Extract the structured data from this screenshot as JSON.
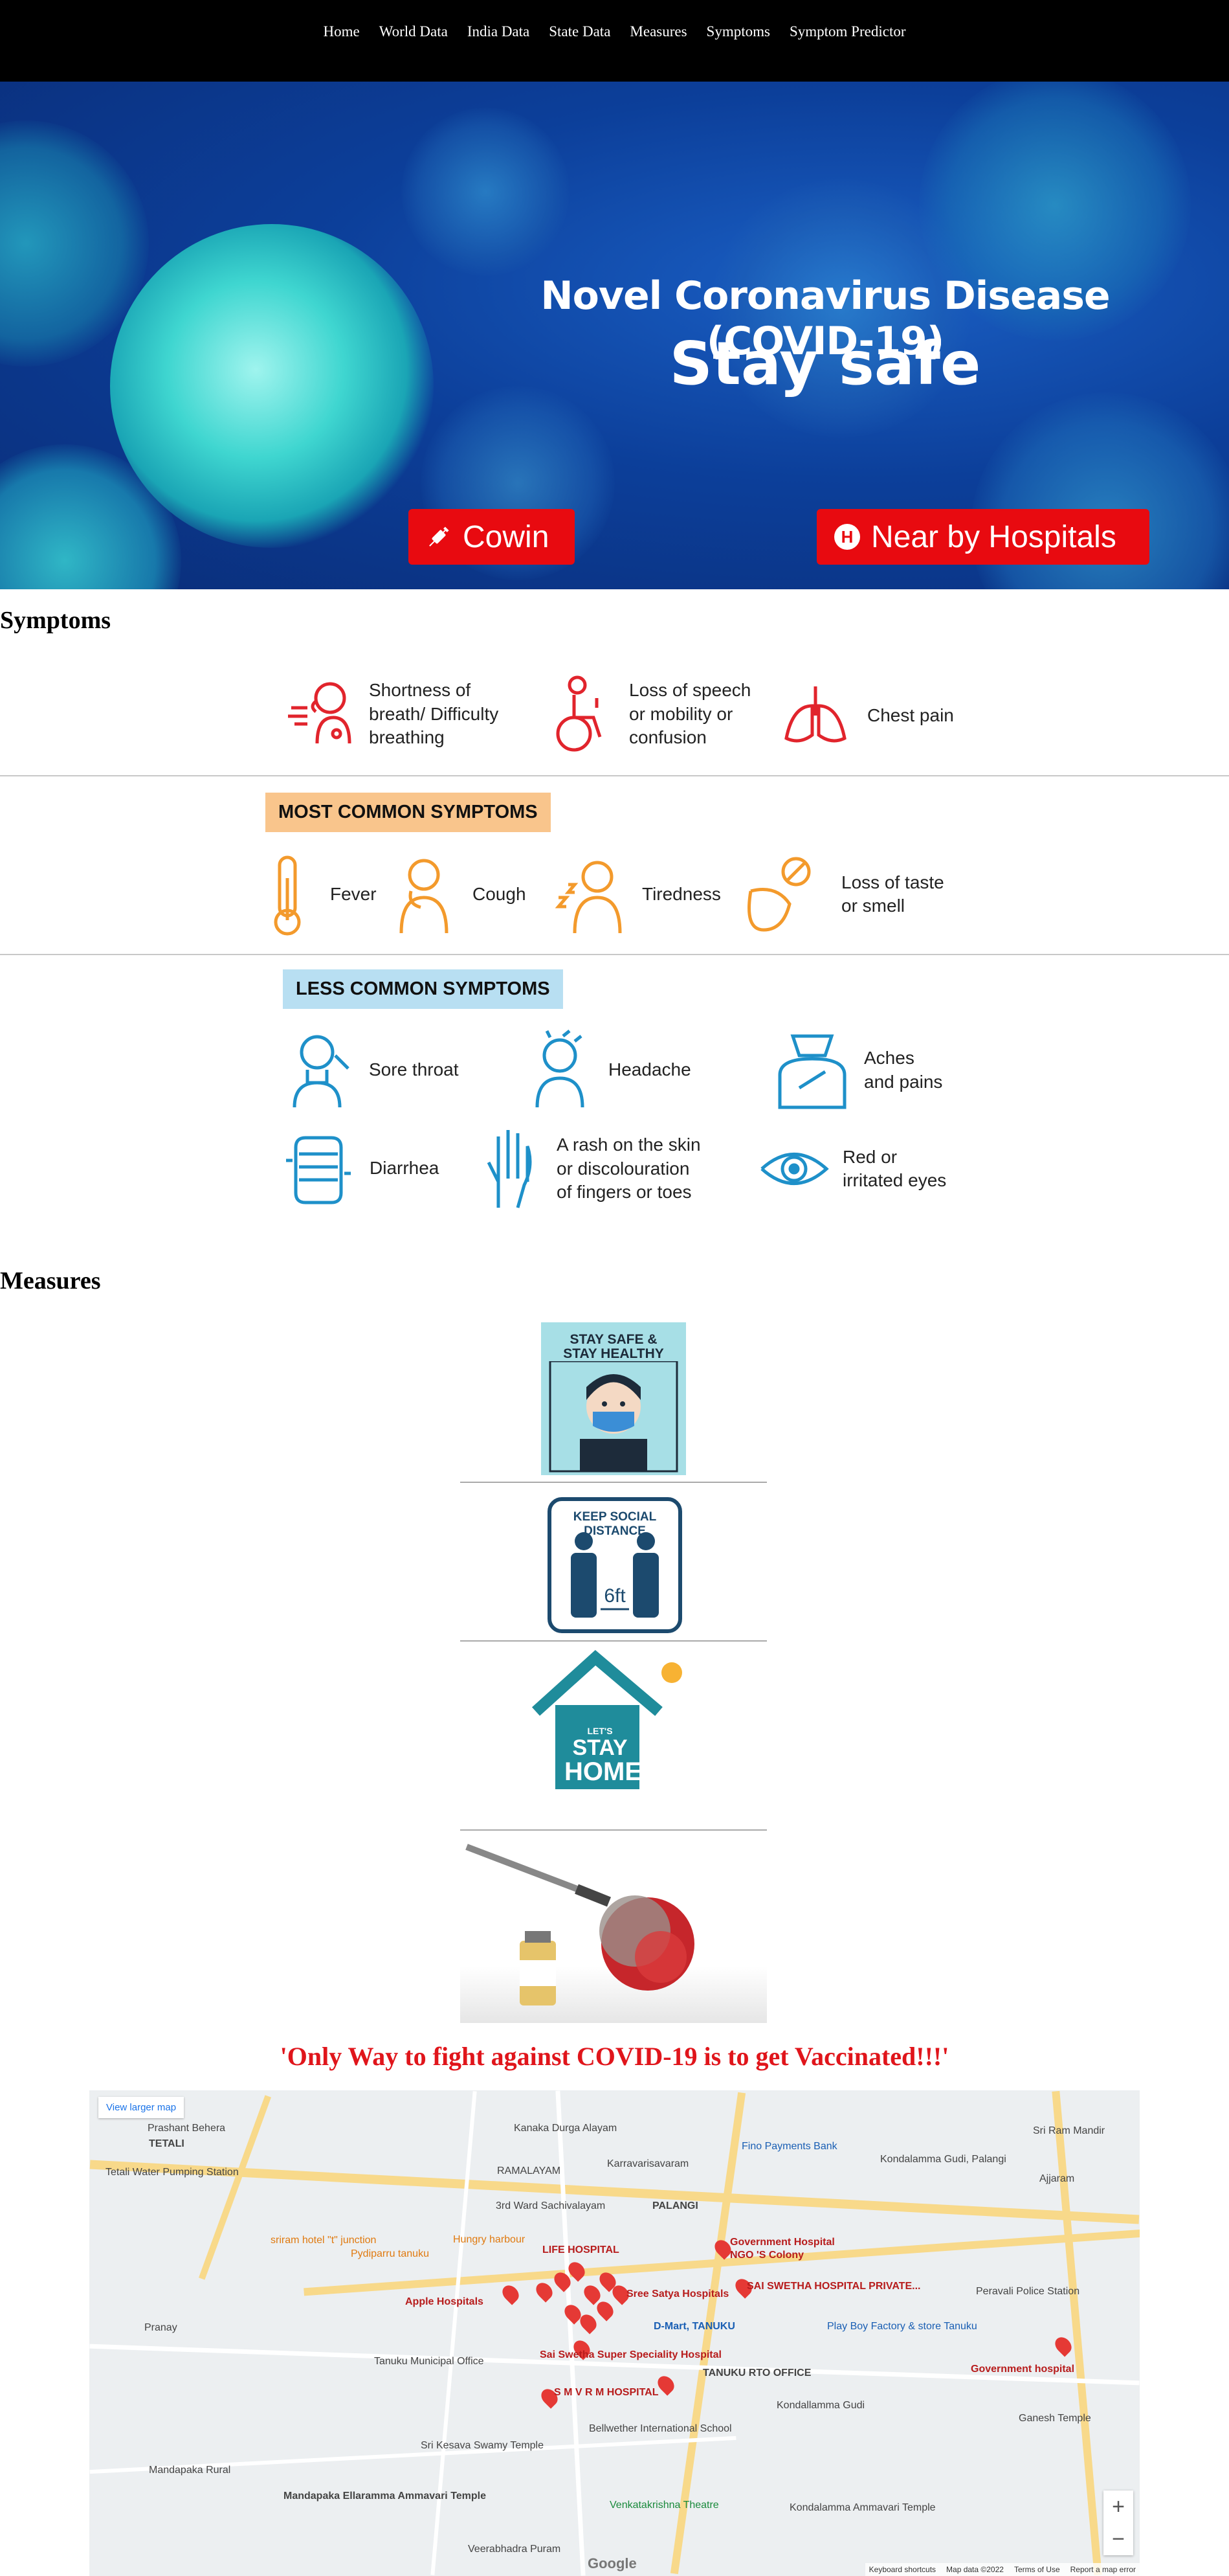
{
  "nav": {
    "items": [
      "Home",
      "World Data",
      "India Data",
      "State Data",
      "Measures",
      "Symptoms",
      "Symptom Predictor"
    ]
  },
  "hero": {
    "title": "Novel Coronavirus Disease (COVID-19)",
    "subtitle": "Stay safe",
    "cowin_label": "Cowin",
    "hospitals_label": "Near by Hospitals"
  },
  "symptoms": {
    "heading": "Symptoms",
    "serious": [
      {
        "label": "Shortness of\nbreath/ Difficulty\nbreathing",
        "icon": "breathing-icon"
      },
      {
        "label": "Loss of speech\nor mobility or\nconfusion",
        "icon": "wheelchair-icon"
      },
      {
        "label": "Chest pain",
        "icon": "lungs-icon"
      }
    ],
    "most_common_tag": "MOST COMMON SYMPTOMS",
    "most_common": [
      {
        "label": "Fever",
        "icon": "thermometer-icon"
      },
      {
        "label": "Cough",
        "icon": "cough-icon"
      },
      {
        "label": "Tiredness",
        "icon": "tiredness-icon"
      },
      {
        "label": "Loss of taste\nor smell",
        "icon": "taste-icon"
      }
    ],
    "less_common_tag": "LESS COMMON SYMPTOMS",
    "less_common": [
      {
        "label": "Sore throat",
        "icon": "sore-throat-icon"
      },
      {
        "label": "Headache",
        "icon": "headache-icon"
      },
      {
        "label": "Aches\nand pains",
        "icon": "aches-icon"
      },
      {
        "label": "Diarrhea",
        "icon": "intestine-icon"
      },
      {
        "label": "A rash on the skin\nor discolouration\nof fingers or toes",
        "icon": "hand-icon"
      },
      {
        "label": "Red or\nirritated eyes",
        "icon": "eye-icon"
      }
    ]
  },
  "measures": {
    "heading": "Measures",
    "mask_text": "STAY SAFE &\nSTAY HEALTHY",
    "distance_text": "KEEP SOCIAL DISTANCE",
    "distance_unit": "6ft",
    "home_text_1": "LET'S",
    "home_text_2": "STAY",
    "home_text_3": "HOME"
  },
  "vaccination_message": "'Only Way to fight against COVID-19 is to get Vaccinated!!!'",
  "map": {
    "view_larger": "View larger map",
    "labels": [
      "Prashant Behera",
      "TETALI",
      "Tetali Water Pumping Station",
      "Kanaka Durga Alayam",
      "Karravarisavaram",
      "Fino Payments Bank",
      "Kondalamma Gudi, Palangi",
      "Sri Ram Mandir",
      "RAMALAYAM",
      "PALANGI",
      "3rd Ward Sachivalayam",
      "Government Hospital",
      "NGO 'S Colony",
      "sriram hotel \"t\" junction",
      "Pydiparru tanuku",
      "Hungry harbour",
      "LIFE HOSPITAL",
      "Apple Hospitals",
      "Sree Satya Hospitals",
      "SAI SWETHA HOSPITAL PRIVATE...",
      "Peravali Police Station",
      "D-Mart, TANUKU",
      "Play Boy Factory & store Tanuku",
      "Government hospital",
      "Pranay",
      "Tanuku Municipal Office",
      "Sai Swetha Super Speciality Hospital",
      "S M V R M HOSPITAL",
      "TANUKU RTO OFFICE",
      "Kondallamma Gudi",
      "Ganesh Temple",
      "Bellwether International School",
      "Sri Kesava Swamy Temple",
      "Mandapaka Rural",
      "Mandapaka Ellaramma Ammavari Temple",
      "Venkatakrishna Theatre",
      "Kondalamma Ammavari Temple",
      "Veerabhadra Puram",
      "Ajjaram"
    ],
    "attribution": [
      "Keyboard shortcuts",
      "Map data ©2022",
      "Terms of Use",
      "Report a map error"
    ],
    "google": "Google"
  }
}
